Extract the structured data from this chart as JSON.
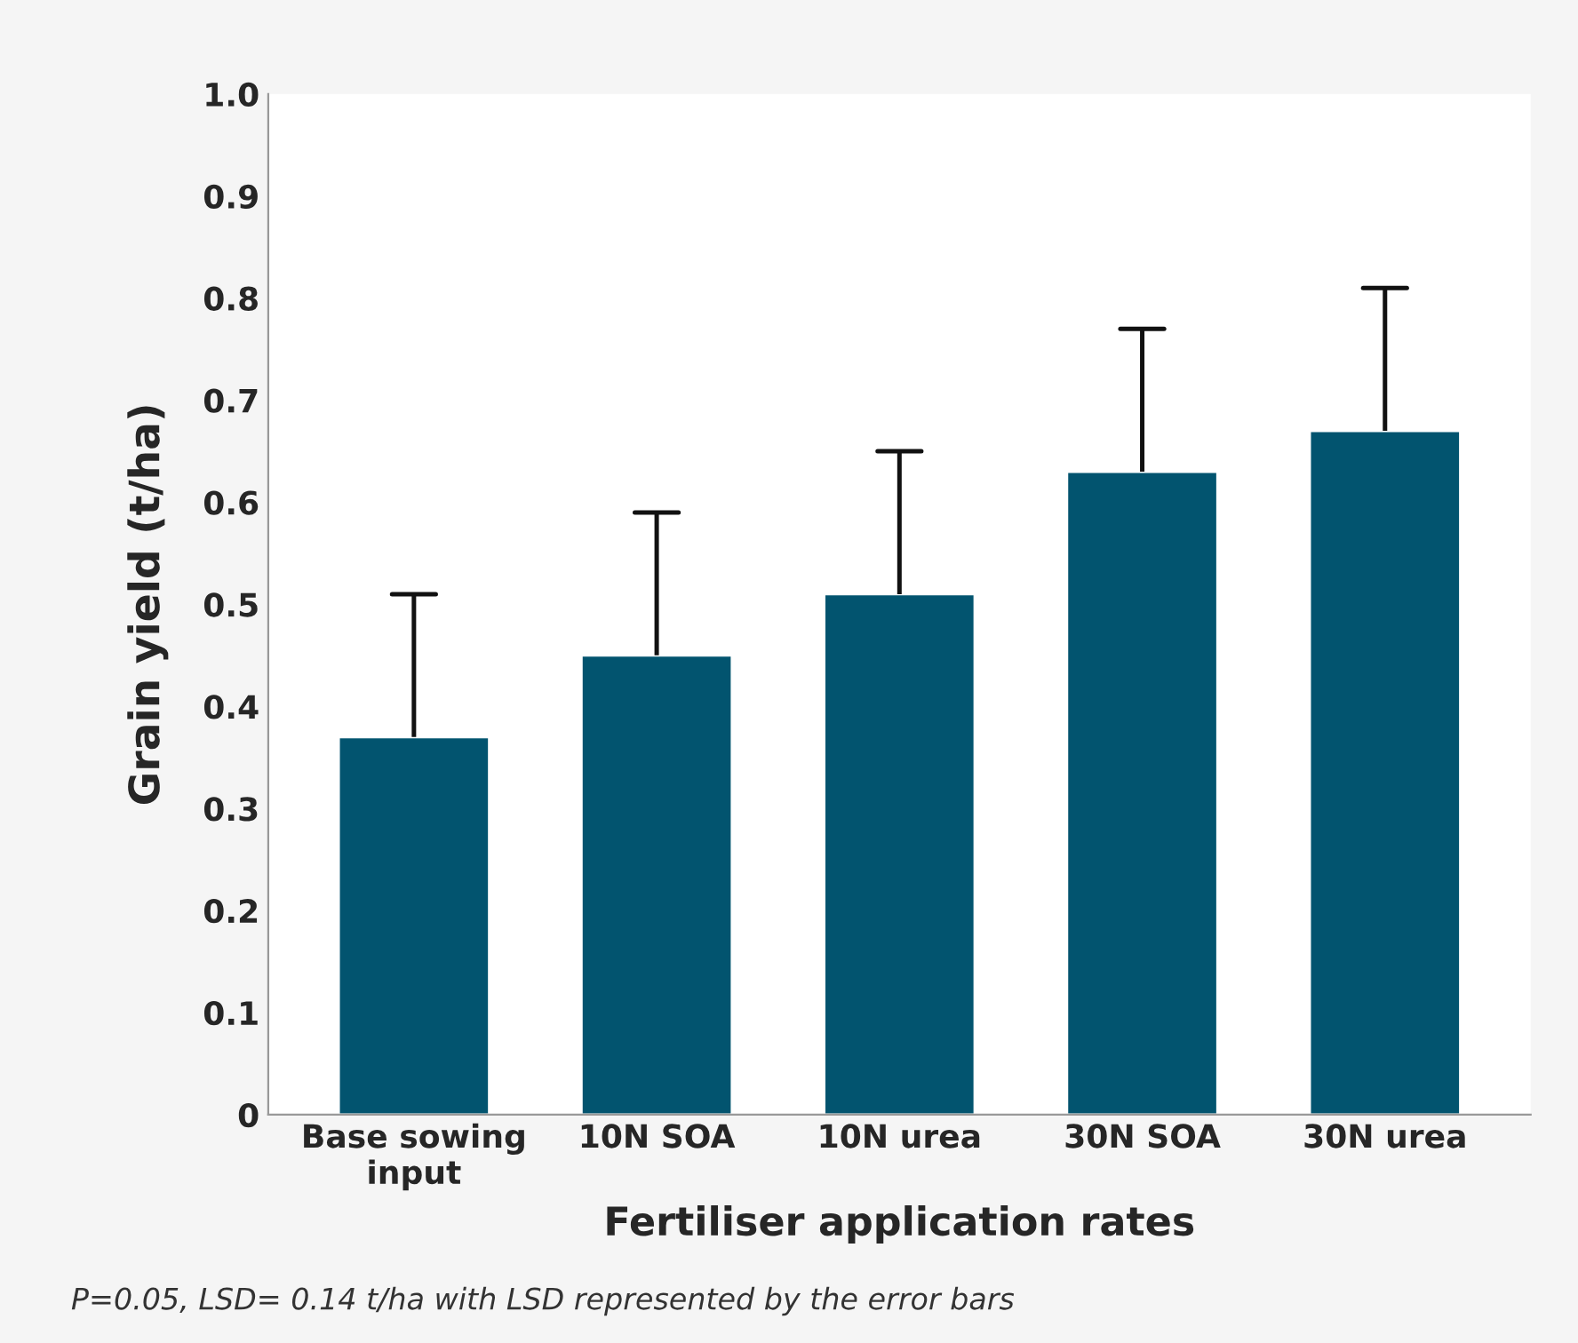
{
  "chart_data": {
    "type": "bar",
    "xlabel": "Fertiliser application rates",
    "ylabel": "Grain yield (t/ha)",
    "categories": [
      "Base sowing\ninput",
      "10N SOA",
      "10N urea",
      "30N SOA",
      "30N urea"
    ],
    "values": [
      0.37,
      0.45,
      0.51,
      0.63,
      0.67
    ],
    "errors": [
      [
        0.37,
        0.51
      ],
      [
        0.45,
        0.59
      ],
      [
        0.51,
        0.65
      ],
      [
        0.63,
        0.77
      ],
      [
        0.67,
        0.81
      ]
    ],
    "color": "#02546f",
    "ylim": [
      0,
      1.0
    ],
    "yticks": [
      {
        "value": 0,
        "label": "0"
      },
      0.1,
      0.2,
      0.3,
      0.4,
      0.5,
      0.6,
      0.7,
      0.8,
      0.9,
      {
        "value": 1.0,
        "label": "1.0"
      }
    ],
    "grid": false,
    "annotations": [
      "P=0.05, LSD= 0.14 t/ha with LSD represented by the error bars"
    ]
  }
}
